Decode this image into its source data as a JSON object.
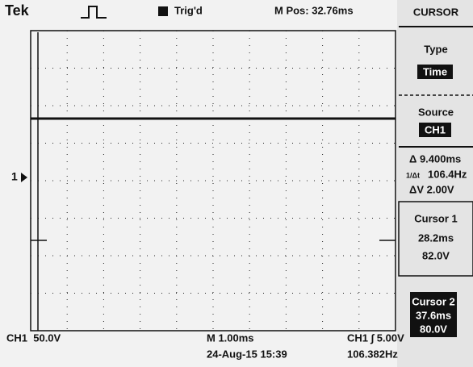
{
  "header": {
    "brand": "Tek",
    "trigger_status": "Trig'd",
    "position": "M Pos: 32.76ms"
  },
  "channel_marker": "1",
  "menu": {
    "title": "CURSOR",
    "type": {
      "label": "Type",
      "value": "Time"
    },
    "source": {
      "label": "Source",
      "value": "CH1"
    },
    "readouts": {
      "delta_t": "Δ 9.400ms",
      "inverse_label": "1/Δt",
      "inverse_value": "106.4Hz",
      "delta_v": "ΔV 2.00V"
    },
    "cursor1": {
      "label": "Cursor 1",
      "time": "28.2ms",
      "volts": "82.0V"
    },
    "cursor2": {
      "label": "Cursor 2",
      "time": "37.6ms",
      "volts": "80.0V"
    }
  },
  "footer": {
    "channel_scale": "CH1  50.0V",
    "time_scale": "M 1.00ms",
    "trigger": "CH1 ∫ 5.00V",
    "date": "24-Aug-15 15:39",
    "frequency": "106.382Hz"
  }
}
